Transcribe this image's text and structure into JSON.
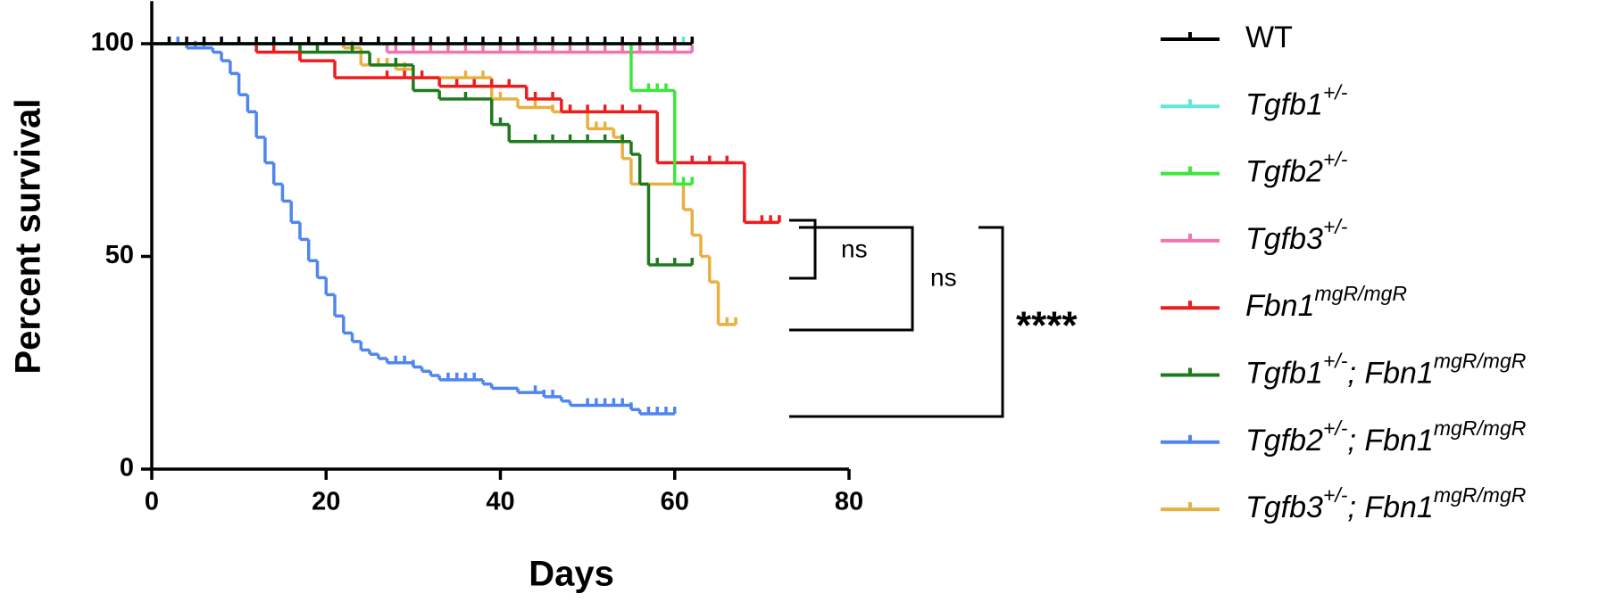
{
  "chart_data": {
    "type": "survival",
    "xlabel": "Days",
    "ylabel": "Percent survival",
    "xlim": [
      0,
      80
    ],
    "xticks": [
      0,
      20,
      40,
      60,
      80
    ],
    "ylim": [
      0,
      110
    ],
    "yticks": [
      0,
      50,
      100
    ],
    "series": [
      {
        "name": [
          [
            "WT",
            ""
          ]
        ],
        "italic": false,
        "color": "#000000",
        "x": [
          0,
          62
        ],
        "values": [
          100,
          100
        ],
        "censored": [
          2,
          4,
          6,
          8,
          10,
          12,
          14,
          16,
          18,
          20,
          22,
          24,
          26,
          28,
          30,
          32,
          34,
          36,
          38,
          40,
          42,
          44,
          46,
          48,
          50,
          52,
          54,
          56,
          58,
          60,
          62
        ]
      },
      {
        "name": [
          [
            "Tgfb1",
            "+/-"
          ]
        ],
        "italic": true,
        "color": "#5ee8d8",
        "x": [
          0,
          62
        ],
        "values": [
          100,
          100
        ],
        "censored": [
          61,
          62
        ]
      },
      {
        "name": [
          [
            "Tgfb2",
            "+/-"
          ]
        ],
        "italic": true,
        "color": "#3ce63c",
        "x": [
          0,
          55,
          60,
          62
        ],
        "values": [
          100,
          89,
          67,
          67
        ],
        "censored": [
          57,
          58,
          59,
          61,
          62
        ]
      },
      {
        "name": [
          [
            "Tgfb3",
            "+/-"
          ]
        ],
        "italic": true,
        "color": "#f075b0",
        "x": [
          0,
          27,
          62
        ],
        "values": [
          100,
          98,
          98
        ],
        "censored": [
          28,
          30,
          32,
          34,
          36,
          38,
          40,
          42,
          44,
          46,
          48,
          50,
          52,
          54,
          56,
          58,
          60,
          62
        ]
      },
      {
        "name": [
          [
            "Fbn1",
            "mgR/mgR"
          ]
        ],
        "italic": true,
        "color": "#ee1c1c",
        "x": [
          0,
          12,
          17,
          21,
          33,
          43,
          47,
          58,
          68,
          72
        ],
        "values": [
          100,
          98,
          96,
          92,
          90,
          87,
          84,
          72,
          58,
          58
        ],
        "censored": [
          14,
          17,
          27,
          29,
          31,
          35,
          37,
          39,
          41,
          44,
          46,
          48,
          50,
          52,
          54,
          56,
          62,
          64,
          66,
          68,
          70,
          71,
          72
        ]
      },
      {
        "name": [
          [
            "Tgfb1",
            "+/-"
          ],
          [
            "; Fbn1",
            "mgR/mgR"
          ]
        ],
        "italic": true,
        "color": "#1f7a1f",
        "x": [
          0,
          17,
          25,
          30,
          33,
          39,
          41,
          55,
          56,
          57,
          62
        ],
        "values": [
          100,
          98,
          95,
          89,
          87,
          81,
          77,
          74,
          67,
          48,
          48
        ],
        "censored": [
          17,
          19,
          23,
          28,
          36,
          40,
          44,
          46,
          48,
          50,
          52,
          54,
          58,
          60,
          62
        ]
      },
      {
        "name": [
          [
            "Tgfb2",
            "+/-"
          ],
          [
            "; Fbn1",
            "mgR/mgR"
          ]
        ],
        "italic": true,
        "color": "#4f86ee",
        "x": [
          0,
          4,
          7,
          8,
          9,
          10,
          11,
          12,
          13,
          14,
          15,
          16,
          17,
          18,
          19,
          20,
          21,
          22,
          23,
          24,
          25,
          26,
          27,
          30,
          31,
          32,
          33,
          38,
          39,
          42,
          45,
          47,
          48,
          55,
          56,
          60
        ],
        "values": [
          100,
          99,
          98,
          96,
          93,
          88,
          84,
          78,
          72,
          67,
          63,
          58,
          54,
          49,
          45,
          41,
          36,
          32,
          30,
          28,
          27,
          26,
          25,
          24,
          23,
          22,
          21,
          20,
          19,
          18,
          17,
          16,
          15,
          14,
          13,
          13
        ],
        "censored": [
          2,
          3,
          5,
          6,
          28,
          29,
          30,
          34,
          35,
          36,
          37,
          44,
          45,
          46,
          50,
          51,
          52,
          53,
          54,
          55,
          57,
          58,
          59,
          60
        ]
      },
      {
        "name": [
          [
            "Tgfb3",
            "+/-"
          ],
          [
            "; Fbn1",
            "mgR/mgR"
          ]
        ],
        "italic": true,
        "color": "#e8b040",
        "x": [
          0,
          22,
          24,
          28,
          30,
          39,
          42,
          46,
          50,
          53,
          54,
          55,
          61,
          62,
          63,
          64,
          65,
          67
        ],
        "values": [
          100,
          99,
          95,
          94,
          92,
          87,
          85,
          84,
          80,
          78,
          73,
          67,
          61,
          55,
          50,
          44,
          34,
          34
        ],
        "censored": [
          23,
          25,
          26,
          27,
          28,
          29,
          36,
          38,
          40,
          44,
          46,
          48,
          51,
          52,
          53,
          60,
          62,
          66,
          67
        ]
      }
    ],
    "annotations": [
      "ns",
      "ns",
      "****"
    ]
  }
}
